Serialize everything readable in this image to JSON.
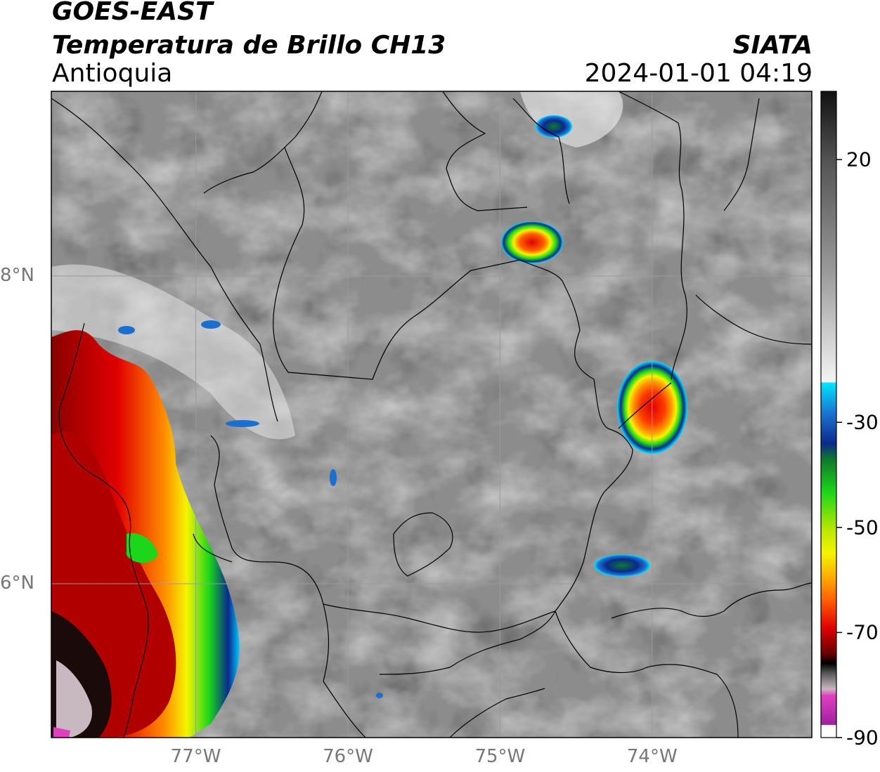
{
  "header": {
    "satellite": "GOES-EAST",
    "product": "Temperatura de Brillo CH13",
    "region": "Antioquia",
    "organization": "SIATA",
    "datetime": "2024-01-01 04:19"
  },
  "axes": {
    "lat_ticks": [
      {
        "label": "8°N",
        "value": 8
      },
      {
        "label": "6°N",
        "value": 6
      }
    ],
    "lon_ticks": [
      {
        "label": "77°W",
        "value": -77
      },
      {
        "label": "76°W",
        "value": -76
      },
      {
        "label": "75°W",
        "value": -75
      },
      {
        "label": "74°W",
        "value": -74
      }
    ],
    "lon_range": [
      -77.95,
      -72.95
    ],
    "lat_range": [
      5.0,
      9.2
    ]
  },
  "colorbar": {
    "ticks": [
      {
        "label": "20",
        "value": 20
      },
      {
        "label": "-30",
        "value": -30
      },
      {
        "label": "-50",
        "value": -50
      },
      {
        "label": "-70",
        "value": -70
      },
      {
        "label": "-90",
        "value": -90
      }
    ],
    "range": [
      -90,
      33
    ],
    "colors": {
      "warm_top": "#111111",
      "warm_mid": "#8a8a8a",
      "near_zero": "#f4f4f4",
      "cyan": "#00e5ff",
      "blue": "#0a2a8c",
      "green": "#1bd61b",
      "yellow": "#f4f400",
      "orange": "#ff8c00",
      "red": "#e00000",
      "dark_red": "#5a0000",
      "gray_cold": "#c8b8c0",
      "magenta": "#e040c0",
      "purple": "#a020a0"
    }
  },
  "map": {
    "background_color": "#8c8c8c",
    "gridline_color": "#9a9a9a",
    "border_color": "#000000",
    "storm_cells": [
      {
        "lon": -74.0,
        "lat": 7.0,
        "min_temp": -65
      },
      {
        "lon": -74.85,
        "lat": 8.25,
        "min_temp": -62
      },
      {
        "lon": -74.7,
        "lat": 8.95,
        "min_temp": -40
      },
      {
        "lon": -74.2,
        "lat": 6.1,
        "min_temp": -35
      },
      {
        "lon": -77.5,
        "lat": 6.0,
        "min_temp": -80
      }
    ]
  }
}
